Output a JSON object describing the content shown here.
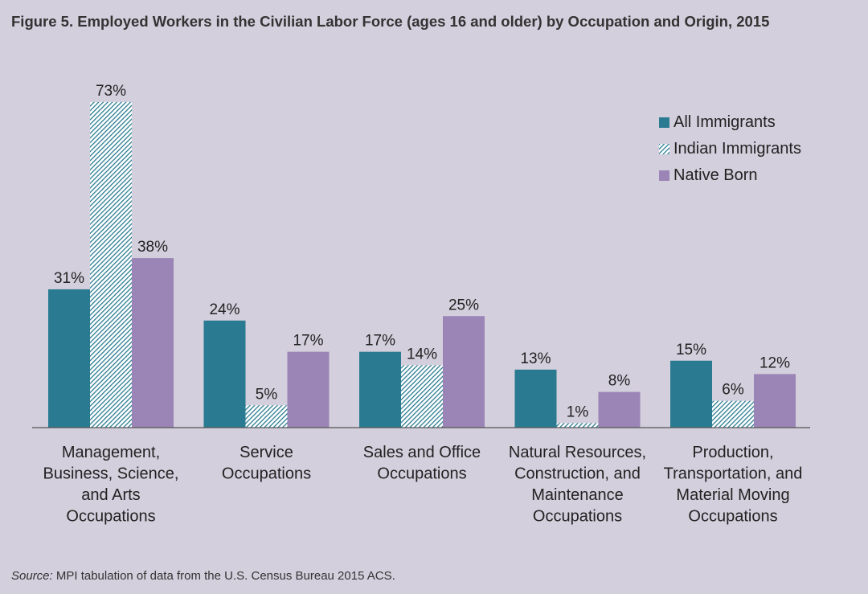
{
  "title": "Figure 5. Employed Workers in the Civilian Labor Force (ages 16 and older) by Occupation and Origin, 2015",
  "source": {
    "label": "Source:",
    "text": " MPI tabulation of data from the U.S. Census Bureau 2015 ACS."
  },
  "colors": {
    "background": "#d3cfdc",
    "all_immigrants": "#2a7b91",
    "indian_immigrants_hatch": "#2a7b91",
    "native_born": "#9b84b6",
    "axis": "#555555"
  },
  "legend": [
    {
      "name": "All Immigrants",
      "style": "solid-teal"
    },
    {
      "name": "Indian Immigrants",
      "style": "hatched-teal"
    },
    {
      "name": "Native Born",
      "style": "solid-purple"
    }
  ],
  "chart_data": {
    "type": "bar",
    "title": "Figure 5. Employed Workers in the Civilian Labor Force (ages 16 and older) by Occupation and Origin, 2015",
    "xlabel": "",
    "ylabel": "",
    "ylim": [
      0,
      80
    ],
    "grid": false,
    "legend_position": "top-right",
    "categories": [
      [
        "Management,",
        "Business, Science,",
        "and Arts",
        "Occupations"
      ],
      [
        "Service",
        "Occupations"
      ],
      [
        "Sales and Office",
        "Occupations"
      ],
      [
        "Natural Resources,",
        "Construction, and",
        "Maintenance",
        "Occupations"
      ],
      [
        "Production,",
        "Transportation, and",
        "Material Moving",
        "Occupations"
      ]
    ],
    "series": [
      {
        "name": "All Immigrants",
        "values": [
          31,
          24,
          17,
          13,
          15
        ],
        "labels": [
          "31%",
          "24%",
          "17%",
          "13%",
          "15%"
        ]
      },
      {
        "name": "Indian Immigrants",
        "values": [
          73,
          5,
          14,
          1,
          6
        ],
        "labels": [
          "73%",
          "5%",
          "14%",
          "1%",
          "6%"
        ]
      },
      {
        "name": "Native Born",
        "values": [
          38,
          17,
          25,
          8,
          12
        ],
        "labels": [
          "38%",
          "17%",
          "25%",
          "8%",
          "12%"
        ]
      }
    ]
  }
}
